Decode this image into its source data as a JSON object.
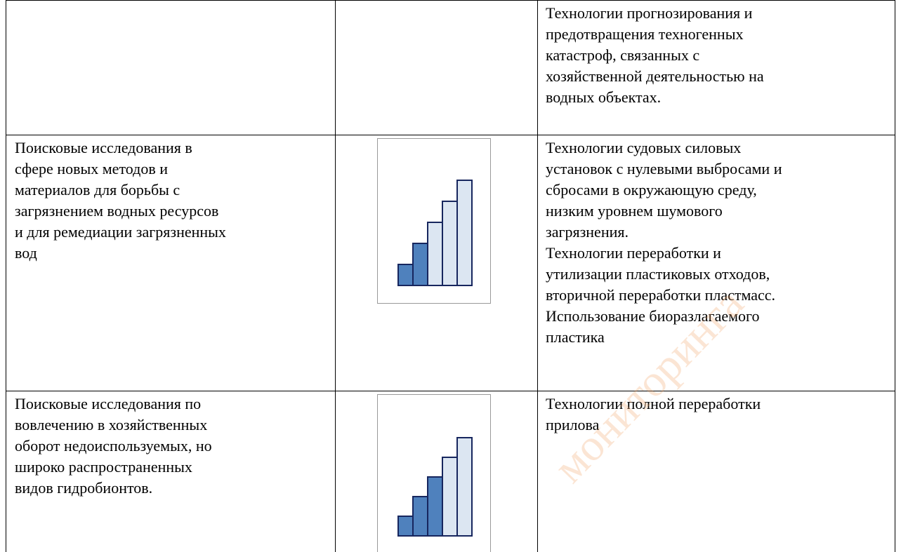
{
  "table": {
    "rows": [
      {
        "cells": [
          [],
          [],
          [
            "Технологии прогнозирования и",
            "предотвращения техногенных",
            "катастроф, связанных с",
            "хозяйственной деятельностью на",
            "водных объектах."
          ]
        ]
      },
      {
        "level": 2,
        "cells": [
          [
            "Поисковые исследования в",
            "сфере новых методов и",
            "материалов для борьбы с",
            "загрязнением водных ресурсов",
            "и для ремедиации загрязненных",
            "вод"
          ],
          [],
          [
            "Технологии судовых силовых",
            "установок с нулевыми выбросами и",
            "сбросами в окружающую среду,",
            "низким уровнем шумового",
            "загрязнения.",
            "Технологии переработки и",
            "утилизации пластиковых отходов,",
            "вторичной переработки пластмасс.",
            "Использование биоразлагаемого",
            "пластика"
          ]
        ]
      },
      {
        "level": 3,
        "cells": [
          [
            "Поисковые исследования по",
            "вовлечению в хозяйственных",
            "оборот недоиспользуемых, но",
            "широко распространенных",
            "видов гидробионтов."
          ],
          [],
          [
            "Технологии полной переработки",
            "прилова"
          ]
        ]
      }
    ]
  },
  "watermark": "мониторинга"
}
